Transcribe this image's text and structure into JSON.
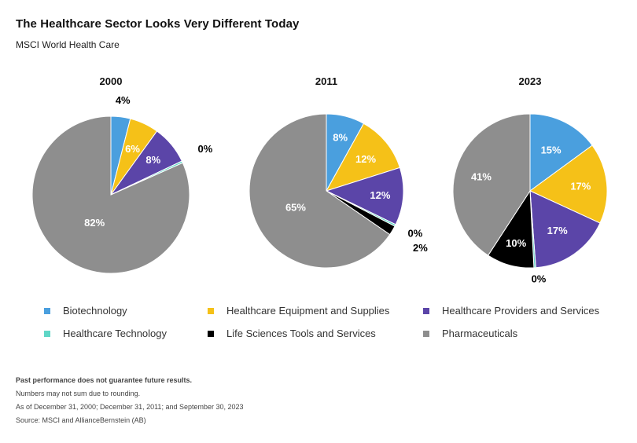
{
  "header": {
    "title": "The Healthcare Sector Looks Very Different Today",
    "subtitle": "MSCI World Health Care"
  },
  "colors": {
    "Biotechnology": "#4a9fde",
    "Healthcare Equipment and Supplies": "#f5c118",
    "Healthcare Providers and Services": "#5b45a8",
    "Healthcare Technology": "#5fd6c6",
    "Life Sciences Tools and Services": "#000000",
    "Pharmaceuticals": "#8e8e8e"
  },
  "chart_data": [
    {
      "type": "pie",
      "title": "2000",
      "labels": [
        "Biotechnology",
        "Healthcare Equipment and Supplies",
        "Healthcare Providers and Services",
        "Healthcare Technology",
        "Life Sciences Tools and Services",
        "Pharmaceuticals"
      ],
      "values": [
        4,
        6,
        8,
        0.4,
        0,
        82
      ],
      "data_labels": [
        "4%",
        "6%",
        "8%",
        "0%",
        "",
        "82%"
      ]
    },
    {
      "type": "pie",
      "title": "2011",
      "labels": [
        "Biotechnology",
        "Healthcare Equipment and Supplies",
        "Healthcare Providers and Services",
        "Healthcare Technology",
        "Life Sciences Tools and Services",
        "Pharmaceuticals"
      ],
      "values": [
        8,
        12,
        12,
        0.4,
        2,
        65
      ],
      "data_labels": [
        "8%",
        "12%",
        "12%",
        "0%",
        "2%",
        "65%"
      ]
    },
    {
      "type": "pie",
      "title": "2023",
      "labels": [
        "Biotechnology",
        "Healthcare Equipment and Supplies",
        "Healthcare Providers and Services",
        "Healthcare Technology",
        "Life Sciences Tools and Services",
        "Pharmaceuticals"
      ],
      "values": [
        15,
        17,
        17,
        0.4,
        10,
        41
      ],
      "data_labels": [
        "15%",
        "17%",
        "17%",
        "0%",
        "10%",
        "41%"
      ]
    }
  ],
  "legend": [
    {
      "label": "Biotechnology",
      "color": "#4a9fde"
    },
    {
      "label": "Healthcare Equipment and Supplies",
      "color": "#f5c118"
    },
    {
      "label": "Healthcare Providers and Services",
      "color": "#5b45a8"
    },
    {
      "label": "Healthcare Technology",
      "color": "#5fd6c6"
    },
    {
      "label": "Life Sciences Tools and Services",
      "color": "#000000"
    },
    {
      "label": "Pharmaceuticals",
      "color": "#8e8e8e"
    }
  ],
  "notes": {
    "disclaimer": "Past performance does not guarantee future results.",
    "rounding": "Numbers may not sum due to rounding.",
    "as_of": "As of December 31, 2000; December 31, 2011; and September 30, 2023",
    "source": "Source: MSCI and AllianceBernstein (AB)"
  }
}
